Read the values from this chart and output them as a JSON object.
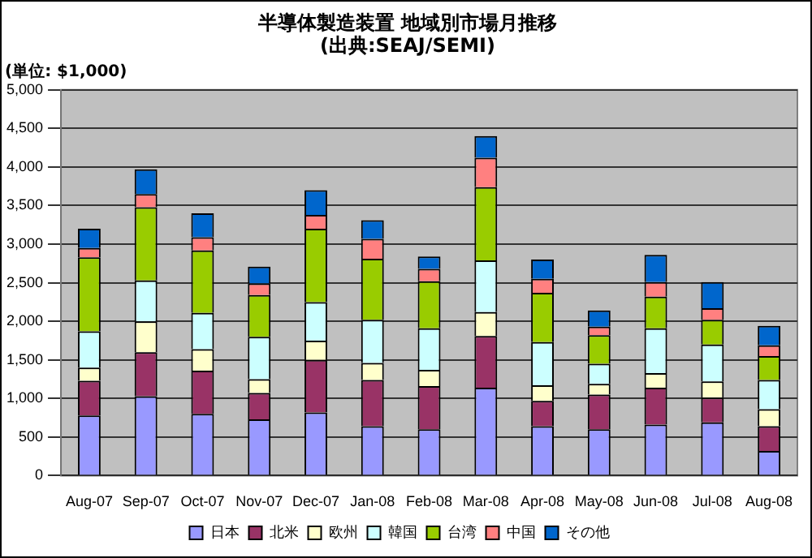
{
  "chart_data": {
    "type": "bar",
    "stacked": true,
    "title": "半導体製造装置 地域別市場月推移",
    "subtitle": "(出典:SEAJ/SEMI)",
    "annotations": [
      "(単位: $1,000)"
    ],
    "categories": [
      "Aug-07",
      "Sep-07",
      "Oct-07",
      "Nov-07",
      "Dec-07",
      "Jan-08",
      "Feb-08",
      "Mar-08",
      "Apr-08",
      "May-08",
      "Jun-08",
      "Jul-08",
      "Aug-08"
    ],
    "series": [
      {
        "name": "日本",
        "color": "#9999ff",
        "values": [
          780,
          1030,
          800,
          730,
          820,
          640,
          600,
          1140,
          640,
          600,
          660,
          690,
          320
        ]
      },
      {
        "name": "北米",
        "color": "#993366",
        "values": [
          450,
          570,
          560,
          340,
          680,
          600,
          560,
          670,
          330,
          450,
          480,
          320,
          320
        ]
      },
      {
        "name": "欧州",
        "color": "#ffffcc",
        "values": [
          170,
          400,
          280,
          180,
          250,
          220,
          210,
          310,
          200,
          140,
          190,
          210,
          220
        ]
      },
      {
        "name": "韓国",
        "color": "#ccffff",
        "values": [
          470,
          530,
          470,
          550,
          500,
          560,
          540,
          670,
          560,
          260,
          580,
          480,
          380
        ]
      },
      {
        "name": "台湾",
        "color": "#99cc00",
        "values": [
          960,
          950,
          810,
          540,
          950,
          790,
          610,
          950,
          640,
          370,
          410,
          320,
          310
        ]
      },
      {
        "name": "中国",
        "color": "#ff8080",
        "values": [
          120,
          170,
          170,
          150,
          180,
          260,
          160,
          380,
          180,
          110,
          190,
          150,
          140
        ]
      },
      {
        "name": "その他",
        "color": "#0066cc",
        "values": [
          250,
          320,
          310,
          220,
          320,
          240,
          160,
          280,
          250,
          210,
          350,
          340,
          250
        ]
      }
    ],
    "ylim": [
      0,
      5000
    ],
    "yticks": [
      {
        "value": 0,
        "label": "0"
      },
      {
        "value": 500,
        "label": "500"
      },
      {
        "value": 1000,
        "label": "1,000"
      },
      {
        "value": 1500,
        "label": "1,500"
      },
      {
        "value": 2000,
        "label": "2,000"
      },
      {
        "value": 2500,
        "label": "2,500"
      },
      {
        "value": 3000,
        "label": "3,000"
      },
      {
        "value": 3500,
        "label": "3,500"
      },
      {
        "value": 4000,
        "label": "4,000"
      },
      {
        "value": 4500,
        "label": "4,500"
      },
      {
        "value": 5000,
        "label": "5,000"
      }
    ],
    "grid": "y",
    "legend": "bottom"
  }
}
